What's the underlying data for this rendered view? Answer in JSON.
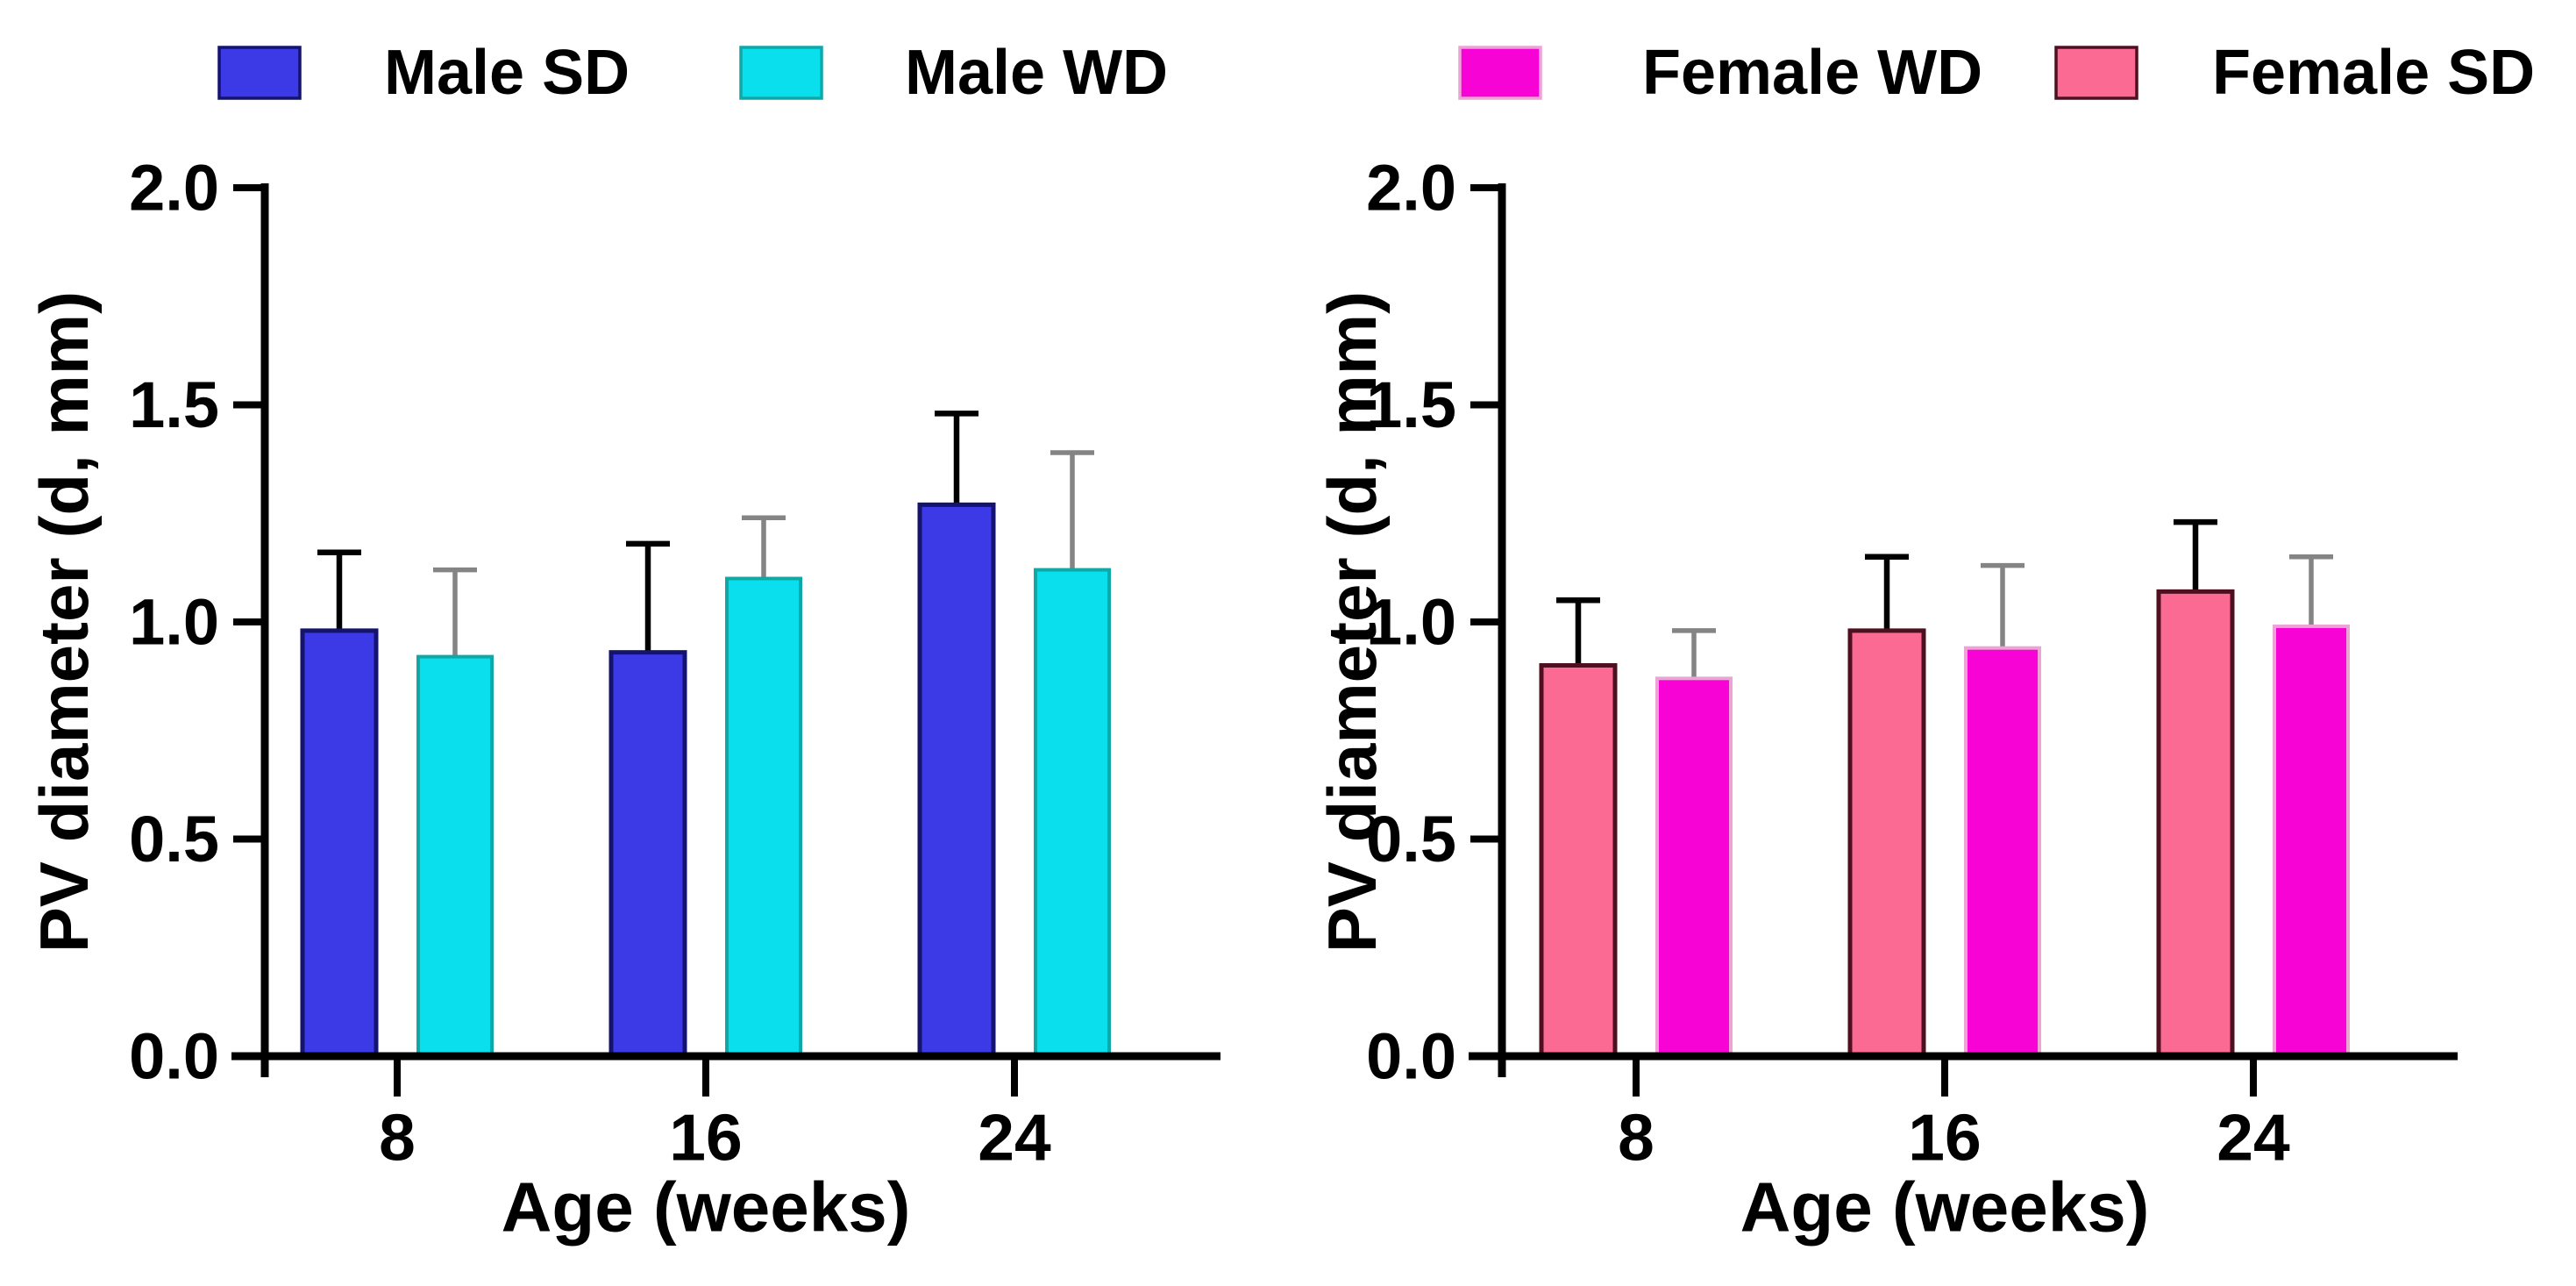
{
  "figure": {
    "background": "#ffffff",
    "text_color": "#000000",
    "axis_color": "#000000"
  },
  "chart_data": [
    {
      "type": "bar",
      "panel": "male",
      "title": "",
      "xlabel": "Age (weeks)",
      "ylabel": "PV diameter (d, mm)",
      "categories": [
        "8",
        "16",
        "24"
      ],
      "ylim": [
        0,
        2
      ],
      "yticks": [
        "0.0",
        "0.5",
        "1.0",
        "1.5",
        "2.0"
      ],
      "grid": false,
      "legend_position": "top",
      "legend": [
        {
          "label": "Male SD",
          "fill": "#3b3ae6",
          "border": "#14136e"
        },
        {
          "label": "Male WD",
          "fill": "#0ae0ed",
          "border": "#0fa8a8"
        }
      ],
      "series": [
        {
          "name": "Male SD",
          "fill": "#3b3ae6",
          "border": "#14136e",
          "error_color": "#000000",
          "values": [
            0.98,
            0.93,
            1.27
          ],
          "error_top": [
            1.16,
            1.18,
            1.48
          ]
        },
        {
          "name": "Male WD",
          "fill": "#0ae0ed",
          "border": "#0fa8a8",
          "error_color": "#848484",
          "values": [
            0.92,
            1.1,
            1.12
          ],
          "error_top": [
            1.12,
            1.24,
            1.39
          ]
        }
      ]
    },
    {
      "type": "bar",
      "panel": "female",
      "title": "",
      "xlabel": "Age (weeks)",
      "ylabel": "PV diameter (d, mm)",
      "categories": [
        "8",
        "16",
        "24"
      ],
      "ylim": [
        0,
        2
      ],
      "yticks": [
        "0.0",
        "0.5",
        "1.0",
        "1.5",
        "2.0"
      ],
      "grid": false,
      "legend_position": "top",
      "legend": [
        {
          "label": "Female WD",
          "fill": "#f803d6",
          "border": "#eca3d5"
        },
        {
          "label": "Female SD",
          "fill": "#fb6a92",
          "border": "#4e1020"
        }
      ],
      "series": [
        {
          "name": "Female SD",
          "fill": "#fb6a92",
          "border": "#4e1020",
          "error_color": "#000000",
          "values": [
            0.9,
            0.98,
            1.07
          ],
          "error_top": [
            1.05,
            1.15,
            1.23
          ]
        },
        {
          "name": "Female WD",
          "fill": "#f803d6",
          "border": "#eca3d5",
          "error_color": "#848484",
          "values": [
            0.87,
            0.94,
            0.99
          ],
          "error_top": [
            0.98,
            1.13,
            1.15
          ]
        }
      ]
    }
  ]
}
